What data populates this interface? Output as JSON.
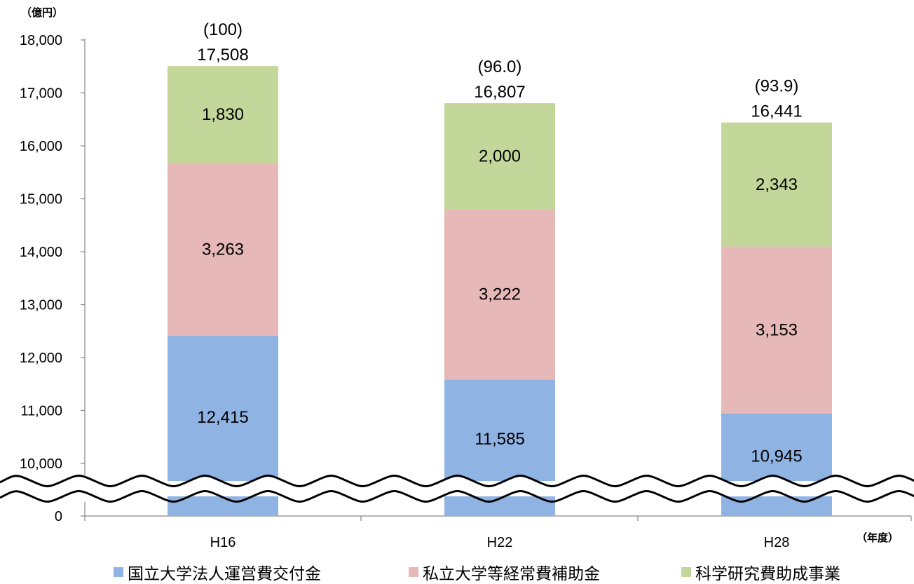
{
  "chart_data": {
    "type": "bar",
    "stacked": true,
    "y_unit_label": "（億円）",
    "x_unit_label": "（年度）",
    "categories": [
      "H16",
      "H22",
      "H28"
    ],
    "series": [
      {
        "name": "国立大学法人運営費交付金",
        "values": [
          12415,
          11585,
          10945
        ],
        "labels": [
          "12,415",
          "11,585",
          "10,945"
        ],
        "color": "#8fb4e3"
      },
      {
        "name": "私立大学等経常費補助金",
        "values": [
          3263,
          3222,
          3153
        ],
        "labels": [
          "3,263",
          "3,222",
          "3,153"
        ],
        "color": "#e6b8b7"
      },
      {
        "name": "科学研究費助成事業",
        "values": [
          1830,
          2000,
          2343
        ],
        "labels": [
          "1,830",
          "2,000",
          "2,343"
        ],
        "color": "#c4d79b"
      }
    ],
    "totals": [
      "17,508",
      "16,807",
      "16,441"
    ],
    "indices": [
      "(100)",
      "(96.0)",
      "(93.9)"
    ],
    "ytick_labels": [
      "0",
      "10,000",
      "11,000",
      "12,000",
      "13,000",
      "14,000",
      "15,000",
      "16,000",
      "17,000",
      "18,000"
    ],
    "ylim": [
      10000,
      18000
    ],
    "axis_break": "between 0 and 10,000",
    "grid": false,
    "legend_position": "bottom"
  }
}
